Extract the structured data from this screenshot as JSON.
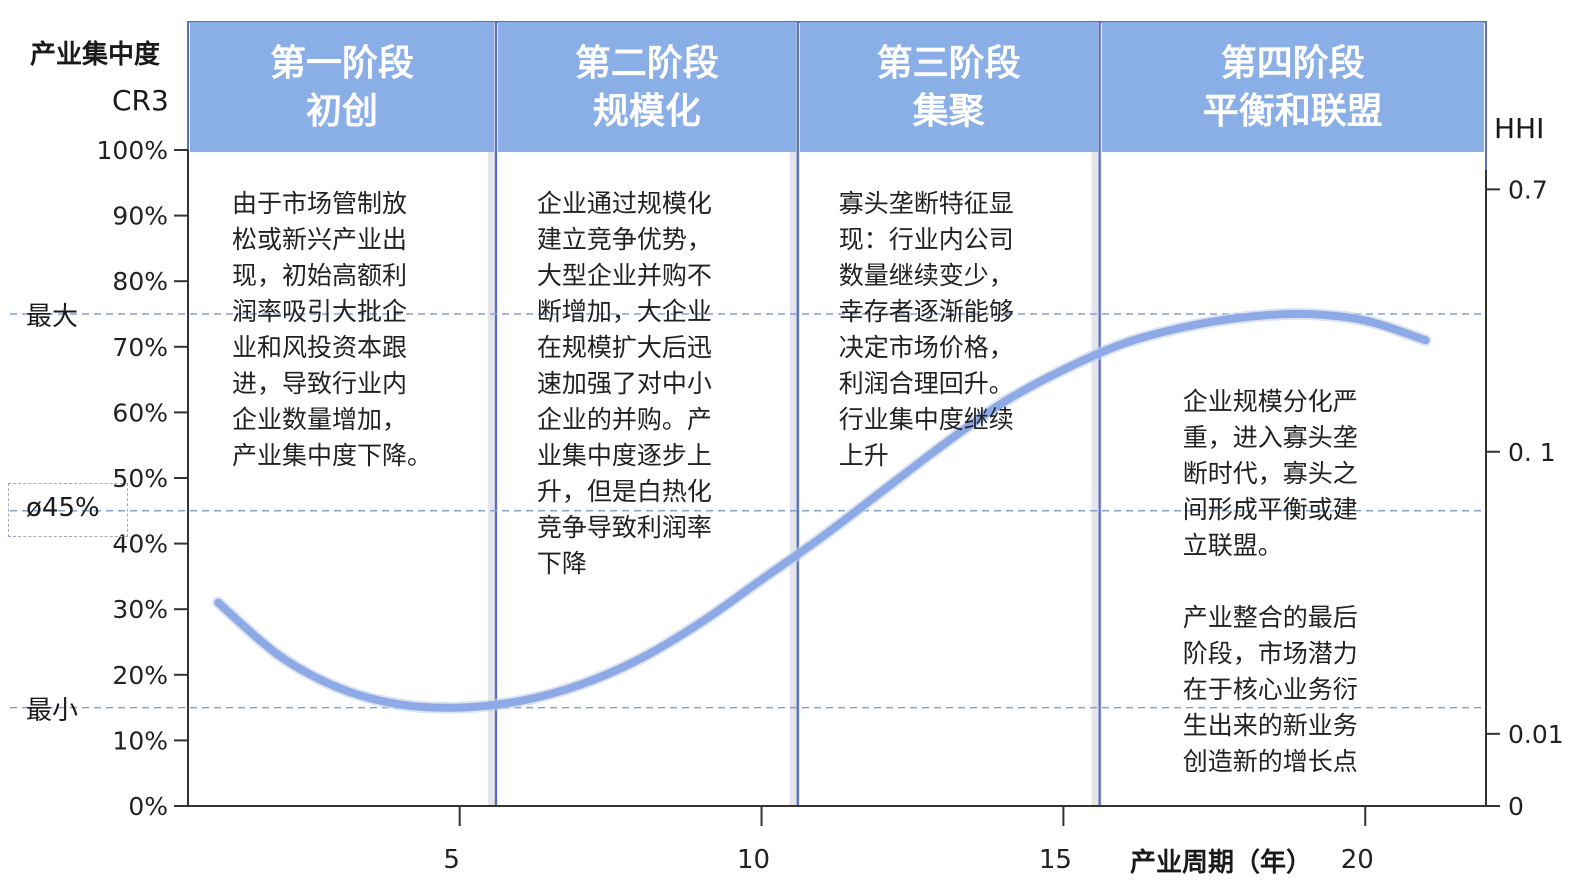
{
  "chart_data": {
    "type": "line",
    "left_axis": {
      "title_line1": "产业集中度",
      "title_line2": "CR3",
      "ticks": [
        "0%",
        "10%",
        "20%",
        "30%",
        "40%",
        "50%",
        "60%",
        "70%",
        "80%",
        "90%",
        "100%"
      ],
      "range": [
        0,
        100
      ]
    },
    "right_axis": {
      "title": "HHI",
      "ticks": [
        {
          "label": "0",
          "cr3": 0
        },
        {
          "label": "0.01",
          "cr3": 11
        },
        {
          "label": "0. 1",
          "cr3": 54
        },
        {
          "label": "0.7",
          "cr3": 94
        }
      ]
    },
    "x_axis": {
      "label": "产业周期（年）",
      "ticks": [
        5,
        10,
        15,
        20
      ],
      "range": [
        0.5,
        22
      ]
    },
    "reference_lines": [
      {
        "label": "最大",
        "value": 75
      },
      {
        "label": "ø45%",
        "value": 45,
        "boxed": true
      },
      {
        "label": "最小",
        "value": 15
      }
    ],
    "stages": [
      {
        "title": "第一阶段",
        "subtitle": "初创",
        "x_start": 0.75,
        "x_end": 5.6,
        "text": "由于市场管制放\n松或新兴产业出\n现，初始高额利\n润率吸引大批企\n业和风投资本跟\n进，导致行业内\n企业数量增加，\n产业集中度下降。"
      },
      {
        "title": "第二阶段",
        "subtitle": "规模化",
        "x_start": 5.6,
        "x_end": 10.6,
        "text": "企业通过规模化\n建立竞争优势，\n大型企业并购不\n断增加，大企业\n在规模扩大后迅\n速加强了对中小\n企业的并购。产\n业集中度逐步上\n升，但是白热化\n竞争导致利润率\n下降"
      },
      {
        "title": "第三阶段",
        "subtitle": "集聚",
        "x_start": 10.6,
        "x_end": 15.6,
        "text": "寡头垄断特征显\n现：行业内公司\n数量继续变少，\n幸存者逐渐能够\n决定市场价格，\n利润合理回升。\n行业集中度继续\n上升"
      },
      {
        "title": "第四阶段",
        "subtitle": "平衡和联盟",
        "x_start": 15.6,
        "x_end": 20.6,
        "text": "企业规模分化严\n重，进入寡头垄\n断时代，寡头之\n间形成平衡或建\n立联盟。\n\n产业整合的最后\n阶段，市场潜力\n在于核心业务衍\n生出来的新业务\n创造新的增长点"
      }
    ],
    "series": [
      {
        "x": [
          1,
          2,
          3,
          4,
          5,
          6,
          7,
          8,
          9,
          10,
          11,
          12,
          13,
          14,
          15,
          16,
          17,
          18,
          19,
          20,
          21
        ],
        "y": [
          31,
          23,
          18,
          15.5,
          15,
          16,
          18.5,
          22.5,
          28,
          34.5,
          41,
          48,
          55,
          61.5,
          66.5,
          70.5,
          73,
          74.5,
          75,
          74,
          71
        ]
      }
    ],
    "colors": {
      "header": "#8aaee6",
      "curve": "#8eaae6",
      "divider": "#5a6fc0",
      "reference": "#8aa0d0"
    }
  }
}
